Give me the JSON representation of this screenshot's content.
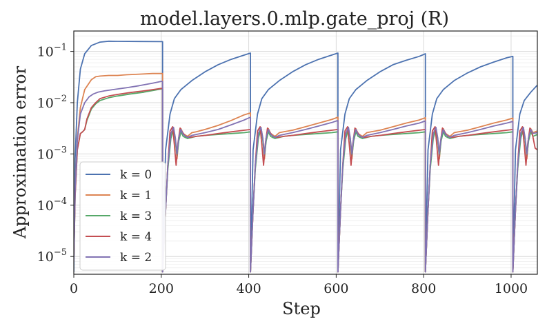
{
  "chart_data": {
    "type": "line",
    "title": "model.layers.0.mlp.gate_proj (R)",
    "xlabel": "Step",
    "ylabel": "Approximation error",
    "xlim": [
      0,
      1060
    ],
    "ylim": [
      4.5e-06,
      0.25
    ],
    "yscale": "log",
    "grid": true,
    "legend_position": "lower-left",
    "xticks": [
      0,
      200,
      400,
      600,
      800,
      1000
    ],
    "xtick_labels": [
      "0",
      "200",
      "400",
      "600",
      "800",
      "1000"
    ],
    "yticks": [
      1e-05,
      0.0001,
      0.001,
      0.01,
      0.1
    ],
    "ytick_labels": [
      {
        "base": "10",
        "exp": "−5"
      },
      {
        "base": "10",
        "exp": "−4"
      },
      {
        "base": "10",
        "exp": "−3"
      },
      {
        "base": "10",
        "exp": "−2"
      },
      {
        "base": "10",
        "exp": "−1"
      }
    ],
    "series": [
      {
        "name": "k = 0",
        "color": "#4c72b0",
        "x": [
          0,
          3,
          8,
          15,
          25,
          40,
          60,
          80,
          100,
          150,
          200,
          203,
          203,
          210,
          220,
          230,
          245,
          270,
          300,
          330,
          360,
          390,
          404,
          404,
          410,
          420,
          430,
          445,
          470,
          500,
          530,
          560,
          590,
          604,
          604,
          610,
          620,
          630,
          645,
          670,
          700,
          730,
          760,
          790,
          804,
          804,
          810,
          820,
          830,
          845,
          870,
          900,
          930,
          960,
          990,
          1004,
          1004,
          1010,
          1020,
          1030,
          1045,
          1060
        ],
        "y": [
          5e-06,
          0.0008,
          0.01,
          0.045,
          0.09,
          0.13,
          0.152,
          0.158,
          0.157,
          0.156,
          0.155,
          0.155,
          5e-06,
          0.0012,
          0.006,
          0.012,
          0.018,
          0.027,
          0.04,
          0.055,
          0.07,
          0.085,
          0.093,
          5e-06,
          0.0012,
          0.006,
          0.012,
          0.018,
          0.027,
          0.04,
          0.055,
          0.07,
          0.085,
          0.093,
          5e-06,
          0.0012,
          0.006,
          0.012,
          0.018,
          0.027,
          0.04,
          0.055,
          0.067,
          0.08,
          0.09,
          5e-06,
          0.0012,
          0.006,
          0.012,
          0.018,
          0.027,
          0.038,
          0.05,
          0.062,
          0.075,
          0.08,
          5e-06,
          0.0012,
          0.006,
          0.011,
          0.016,
          0.022
        ]
      },
      {
        "name": "k = 1",
        "color": "#dd8452",
        "x": [
          0,
          3,
          8,
          15,
          25,
          40,
          50,
          60,
          80,
          100,
          120,
          150,
          180,
          200,
          203,
          203,
          210,
          215,
          222,
          228,
          232,
          236,
          240,
          245,
          250,
          260,
          270,
          280,
          300,
          330,
          360,
          390,
          404,
          404,
          410,
          415,
          422,
          428,
          432,
          436,
          440,
          445,
          450,
          460,
          470,
          480,
          500,
          530,
          560,
          590,
          604,
          604,
          610,
          615,
          622,
          628,
          632,
          636,
          640,
          645,
          650,
          660,
          670,
          680,
          700,
          730,
          760,
          790,
          804,
          804,
          810,
          815,
          822,
          828,
          832,
          836,
          840,
          845,
          850,
          860,
          870,
          880,
          900,
          930,
          960,
          990,
          1004,
          1004,
          1010,
          1015,
          1022,
          1028,
          1032,
          1036,
          1040,
          1045,
          1050,
          1060
        ],
        "y": [
          8e-06,
          0.0002,
          0.002,
          0.008,
          0.018,
          0.028,
          0.032,
          0.033,
          0.034,
          0.034,
          0.035,
          0.036,
          0.037,
          0.037,
          0.037,
          5e-06,
          8e-05,
          0.0006,
          0.0025,
          0.0033,
          0.002,
          0.0008,
          0.002,
          0.0031,
          0.0025,
          0.0022,
          0.0026,
          0.0027,
          0.003,
          0.0036,
          0.0045,
          0.0058,
          0.0063,
          5e-06,
          8e-05,
          0.0006,
          0.0025,
          0.0033,
          0.002,
          0.0008,
          0.002,
          0.0031,
          0.0025,
          0.0022,
          0.0026,
          0.0027,
          0.0029,
          0.0034,
          0.004,
          0.0047,
          0.0052,
          5e-06,
          8e-05,
          0.0006,
          0.0025,
          0.0033,
          0.002,
          0.0008,
          0.002,
          0.0031,
          0.0025,
          0.0022,
          0.0026,
          0.0027,
          0.0029,
          0.0034,
          0.004,
          0.0046,
          0.0051,
          5e-06,
          8e-05,
          0.0006,
          0.0025,
          0.0033,
          0.002,
          0.0008,
          0.002,
          0.0031,
          0.0025,
          0.0022,
          0.0026,
          0.0027,
          0.0029,
          0.0034,
          0.004,
          0.0046,
          0.005,
          5e-06,
          8e-05,
          0.0006,
          0.0025,
          0.0033,
          0.002,
          0.0008,
          0.002,
          0.0031,
          0.0026,
          0.0028
        ]
      },
      {
        "name": "k = 3",
        "color": "#55a868",
        "x": [
          0,
          3,
          8,
          15,
          20,
          25,
          30,
          40,
          50,
          60,
          80,
          100,
          130,
          160,
          200,
          203,
          203,
          210,
          215,
          222,
          228,
          232,
          236,
          240,
          245,
          250,
          260,
          270,
          280,
          300,
          330,
          360,
          390,
          404,
          404,
          410,
          415,
          422,
          428,
          432,
          436,
          440,
          445,
          450,
          460,
          470,
          480,
          500,
          530,
          560,
          590,
          604,
          604,
          610,
          615,
          622,
          628,
          632,
          636,
          640,
          645,
          650,
          660,
          670,
          680,
          700,
          730,
          760,
          790,
          804,
          804,
          810,
          815,
          822,
          828,
          832,
          836,
          840,
          845,
          850,
          860,
          870,
          880,
          900,
          930,
          960,
          990,
          1004,
          1004,
          1010,
          1015,
          1022,
          1028,
          1032,
          1036,
          1040,
          1045,
          1050,
          1060
        ],
        "y": [
          8e-06,
          0.00015,
          0.0012,
          0.0025,
          0.0027,
          0.003,
          0.0045,
          0.0075,
          0.0095,
          0.011,
          0.0125,
          0.0135,
          0.0148,
          0.016,
          0.0185,
          0.0185,
          5e-06,
          8e-05,
          0.0005,
          0.002,
          0.0031,
          0.0019,
          0.0009,
          0.0018,
          0.0027,
          0.0022,
          0.002,
          0.0021,
          0.0022,
          0.0023,
          0.0024,
          0.0025,
          0.0026,
          0.0027,
          5e-06,
          8e-05,
          0.0005,
          0.002,
          0.0031,
          0.0019,
          0.0009,
          0.0018,
          0.0027,
          0.0022,
          0.002,
          0.0021,
          0.0022,
          0.0023,
          0.0024,
          0.0025,
          0.0026,
          0.0027,
          5e-06,
          8e-05,
          0.0005,
          0.002,
          0.0031,
          0.0019,
          0.0009,
          0.0018,
          0.0027,
          0.0022,
          0.002,
          0.0021,
          0.0022,
          0.0023,
          0.0024,
          0.0025,
          0.0026,
          0.0027,
          5e-06,
          8e-05,
          0.0005,
          0.002,
          0.0031,
          0.0019,
          0.0009,
          0.0018,
          0.0027,
          0.0022,
          0.002,
          0.0021,
          0.0022,
          0.0023,
          0.0024,
          0.0025,
          0.0026,
          0.0027,
          5e-06,
          8e-05,
          0.0005,
          0.002,
          0.0031,
          0.0019,
          0.0009,
          0.0018,
          0.0027,
          0.0022,
          0.0024
        ]
      },
      {
        "name": "k = 4",
        "color": "#c44e52",
        "x": [
          0,
          3,
          8,
          15,
          20,
          25,
          30,
          40,
          50,
          60,
          80,
          100,
          130,
          160,
          200,
          203,
          203,
          210,
          215,
          220,
          226,
          230,
          234,
          238,
          243,
          248,
          255,
          265,
          280,
          300,
          330,
          360,
          390,
          404,
          404,
          410,
          415,
          420,
          426,
          430,
          434,
          438,
          443,
          448,
          455,
          465,
          480,
          500,
          530,
          560,
          590,
          604,
          604,
          610,
          615,
          620,
          626,
          630,
          634,
          638,
          643,
          648,
          655,
          665,
          680,
          700,
          730,
          760,
          790,
          804,
          804,
          810,
          815,
          820,
          826,
          830,
          834,
          838,
          843,
          848,
          855,
          865,
          880,
          900,
          930,
          960,
          990,
          1004,
          1004,
          1010,
          1015,
          1020,
          1026,
          1030,
          1034,
          1038,
          1043,
          1048,
          1055,
          1060
        ],
        "y": [
          8e-06,
          0.00015,
          0.0012,
          0.0025,
          0.0027,
          0.003,
          0.0048,
          0.008,
          0.01,
          0.012,
          0.0135,
          0.0145,
          0.0158,
          0.017,
          0.019,
          0.019,
          5e-06,
          8e-05,
          0.0006,
          0.0028,
          0.0034,
          0.0015,
          0.0006,
          0.0016,
          0.0032,
          0.0027,
          0.0022,
          0.0021,
          0.0022,
          0.0023,
          0.0025,
          0.0027,
          0.0029,
          0.003,
          5e-06,
          8e-05,
          0.0006,
          0.0028,
          0.0034,
          0.0015,
          0.0006,
          0.0016,
          0.0032,
          0.0027,
          0.0022,
          0.0021,
          0.0022,
          0.0023,
          0.0025,
          0.0027,
          0.0029,
          0.003,
          5e-06,
          8e-05,
          0.0006,
          0.0028,
          0.0034,
          0.0015,
          0.0006,
          0.0016,
          0.0032,
          0.0027,
          0.0022,
          0.0021,
          0.0022,
          0.0023,
          0.0025,
          0.0027,
          0.0029,
          0.003,
          5e-06,
          8e-05,
          0.0006,
          0.0028,
          0.0034,
          0.0015,
          0.0006,
          0.0016,
          0.0032,
          0.0027,
          0.0022,
          0.0021,
          0.0022,
          0.0023,
          0.0025,
          0.0027,
          0.0029,
          0.003,
          5e-06,
          8e-05,
          0.0006,
          0.0028,
          0.0034,
          0.0015,
          0.0006,
          0.0016,
          0.0032,
          0.0026,
          0.0013,
          0.0012
        ]
      },
      {
        "name": "k = 2",
        "color": "#8172b3",
        "x": [
          0,
          3,
          8,
          15,
          25,
          35,
          45,
          55,
          70,
          90,
          120,
          150,
          180,
          200,
          203,
          203,
          210,
          215,
          222,
          228,
          232,
          236,
          240,
          245,
          250,
          260,
          270,
          280,
          300,
          330,
          360,
          390,
          404,
          404,
          410,
          415,
          422,
          428,
          432,
          436,
          440,
          445,
          450,
          460,
          470,
          480,
          500,
          530,
          560,
          590,
          604,
          604,
          610,
          615,
          622,
          628,
          632,
          636,
          640,
          645,
          650,
          660,
          670,
          680,
          700,
          730,
          760,
          790,
          804,
          804,
          810,
          815,
          822,
          828,
          832,
          836,
          840,
          845,
          850,
          860,
          870,
          880,
          900,
          930,
          960,
          990,
          1004,
          1004,
          1010,
          1015,
          1022,
          1028,
          1032,
          1036,
          1040,
          1045,
          1050,
          1060
        ],
        "y": [
          8e-06,
          0.0002,
          0.0018,
          0.006,
          0.01,
          0.013,
          0.0148,
          0.016,
          0.017,
          0.018,
          0.0195,
          0.0215,
          0.024,
          0.026,
          0.026,
          5e-06,
          8e-05,
          0.0006,
          0.0025,
          0.0033,
          0.0021,
          0.001,
          0.0021,
          0.003,
          0.0024,
          0.0021,
          0.0023,
          0.0024,
          0.0026,
          0.003,
          0.0037,
          0.0046,
          0.0052,
          5e-06,
          8e-05,
          0.0006,
          0.0025,
          0.0033,
          0.0021,
          0.001,
          0.0021,
          0.003,
          0.0024,
          0.0021,
          0.0023,
          0.0024,
          0.0026,
          0.003,
          0.0035,
          0.0041,
          0.0045,
          5e-06,
          8e-05,
          0.0006,
          0.0025,
          0.0033,
          0.0021,
          0.001,
          0.0021,
          0.003,
          0.0024,
          0.0021,
          0.0023,
          0.0024,
          0.0026,
          0.003,
          0.0035,
          0.004,
          0.0044,
          5e-06,
          8e-05,
          0.0006,
          0.0025,
          0.0033,
          0.0021,
          0.001,
          0.0021,
          0.003,
          0.0024,
          0.0021,
          0.0023,
          0.0024,
          0.0026,
          0.003,
          0.0035,
          0.004,
          0.0043,
          5e-06,
          8e-05,
          0.0006,
          0.0025,
          0.0033,
          0.0021,
          0.001,
          0.0021,
          0.003,
          0.0025,
          0.0026
        ]
      }
    ]
  }
}
